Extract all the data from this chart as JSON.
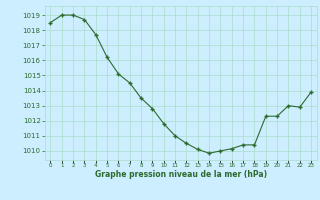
{
  "x": [
    0,
    1,
    2,
    3,
    4,
    5,
    6,
    7,
    8,
    9,
    10,
    11,
    12,
    13,
    14,
    15,
    16,
    17,
    18,
    19,
    20,
    21,
    22,
    23
  ],
  "y": [
    1018.5,
    1019.0,
    1019.0,
    1018.7,
    1017.7,
    1016.2,
    1015.1,
    1014.5,
    1013.5,
    1012.8,
    1011.8,
    1011.0,
    1010.5,
    1010.1,
    1009.85,
    1010.0,
    1010.15,
    1010.4,
    1010.4,
    1012.3,
    1012.3,
    1013.0,
    1012.9,
    1013.9
  ],
  "line_color": "#2d6a2d",
  "marker_color": "#2d6a2d",
  "bg_color": "#cceeff",
  "grid_color": "#aaddcc",
  "xlabel": "Graphe pression niveau de la mer (hPa)",
  "xlabel_color": "#2d6a2d",
  "ylabel_ticks": [
    1010,
    1011,
    1012,
    1013,
    1014,
    1015,
    1016,
    1017,
    1018,
    1019
  ],
  "ylim": [
    1009.4,
    1019.6
  ],
  "xlim": [
    -0.5,
    23.5
  ]
}
